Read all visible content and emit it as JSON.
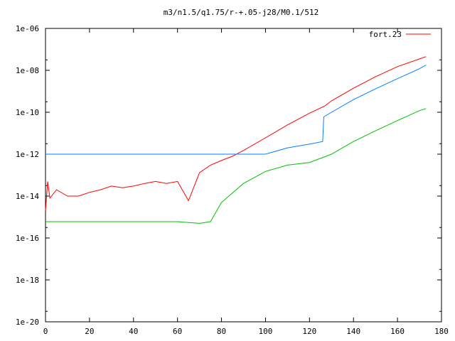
{
  "chart_data": {
    "type": "line",
    "title": "m3/n1.5/q1.75/r-+.05-j28/M0.1/512",
    "xlabel": "",
    "ylabel": "",
    "xlim": [
      0,
      180
    ],
    "ylim": [
      1e-20,
      1e-06
    ],
    "y_scale": "log",
    "x_ticks": [
      "0",
      "20",
      "40",
      "60",
      "80",
      "100",
      "120",
      "140",
      "160",
      "180"
    ],
    "y_ticks": [
      "1e-20",
      "1e-18",
      "1e-16",
      "1e-14",
      "1e-12",
      "1e-10",
      "1e-08",
      "1e-06"
    ],
    "legend_position": "top-right",
    "grid": false,
    "series": [
      {
        "name": "fort.23",
        "color": "#ff0000",
        "x": [
          0,
          1,
          2,
          5,
          10,
          15,
          20,
          25,
          30,
          35,
          40,
          45,
          50,
          55,
          60,
          65,
          70,
          75,
          80,
          85,
          90,
          100,
          110,
          120,
          127,
          130,
          140,
          150,
          160,
          170,
          173
        ],
        "y": [
          2e-15,
          5e-14,
          8e-15,
          2e-14,
          1e-14,
          1e-14,
          1.5e-14,
          2e-14,
          3e-14,
          2.5e-14,
          3e-14,
          4e-14,
          5e-14,
          4e-14,
          5e-14,
          6e-15,
          1.3e-13,
          3e-13,
          5e-13,
          8e-13,
          1.5e-12,
          6e-12,
          2.5e-11,
          9e-11,
          2e-10,
          3.5e-10,
          1.4e-09,
          5e-09,
          1.5e-08,
          3.5e-08,
          4.5e-08
        ]
      },
      {
        "name": "",
        "color": "#0080ff",
        "x": [
          0,
          10,
          20,
          30,
          40,
          50,
          60,
          70,
          80,
          90,
          100,
          110,
          120,
          126,
          126.5,
          130,
          140,
          150,
          160,
          170,
          173
        ],
        "y": [
          1e-12,
          1e-12,
          1e-12,
          1e-12,
          1e-12,
          1e-12,
          1e-12,
          1e-12,
          1e-12,
          1e-12,
          1e-12,
          2e-12,
          3e-12,
          4e-12,
          6e-11,
          1e-10,
          4e-10,
          1.3e-09,
          4e-09,
          1.2e-08,
          1.8e-08
        ]
      },
      {
        "name": "",
        "color": "#00c000",
        "x": [
          0,
          10,
          20,
          30,
          40,
          50,
          60,
          70,
          75,
          80,
          90,
          100,
          110,
          120,
          130,
          140,
          150,
          160,
          170,
          173
        ],
        "y": [
          6e-16,
          6e-16,
          6e-16,
          6e-16,
          6e-16,
          6e-16,
          6e-16,
          5e-16,
          6e-16,
          5e-15,
          4e-14,
          1.5e-13,
          3e-13,
          4e-13,
          1e-12,
          4e-12,
          1.3e-11,
          4e-11,
          1.2e-10,
          1.5e-10
        ]
      }
    ]
  }
}
